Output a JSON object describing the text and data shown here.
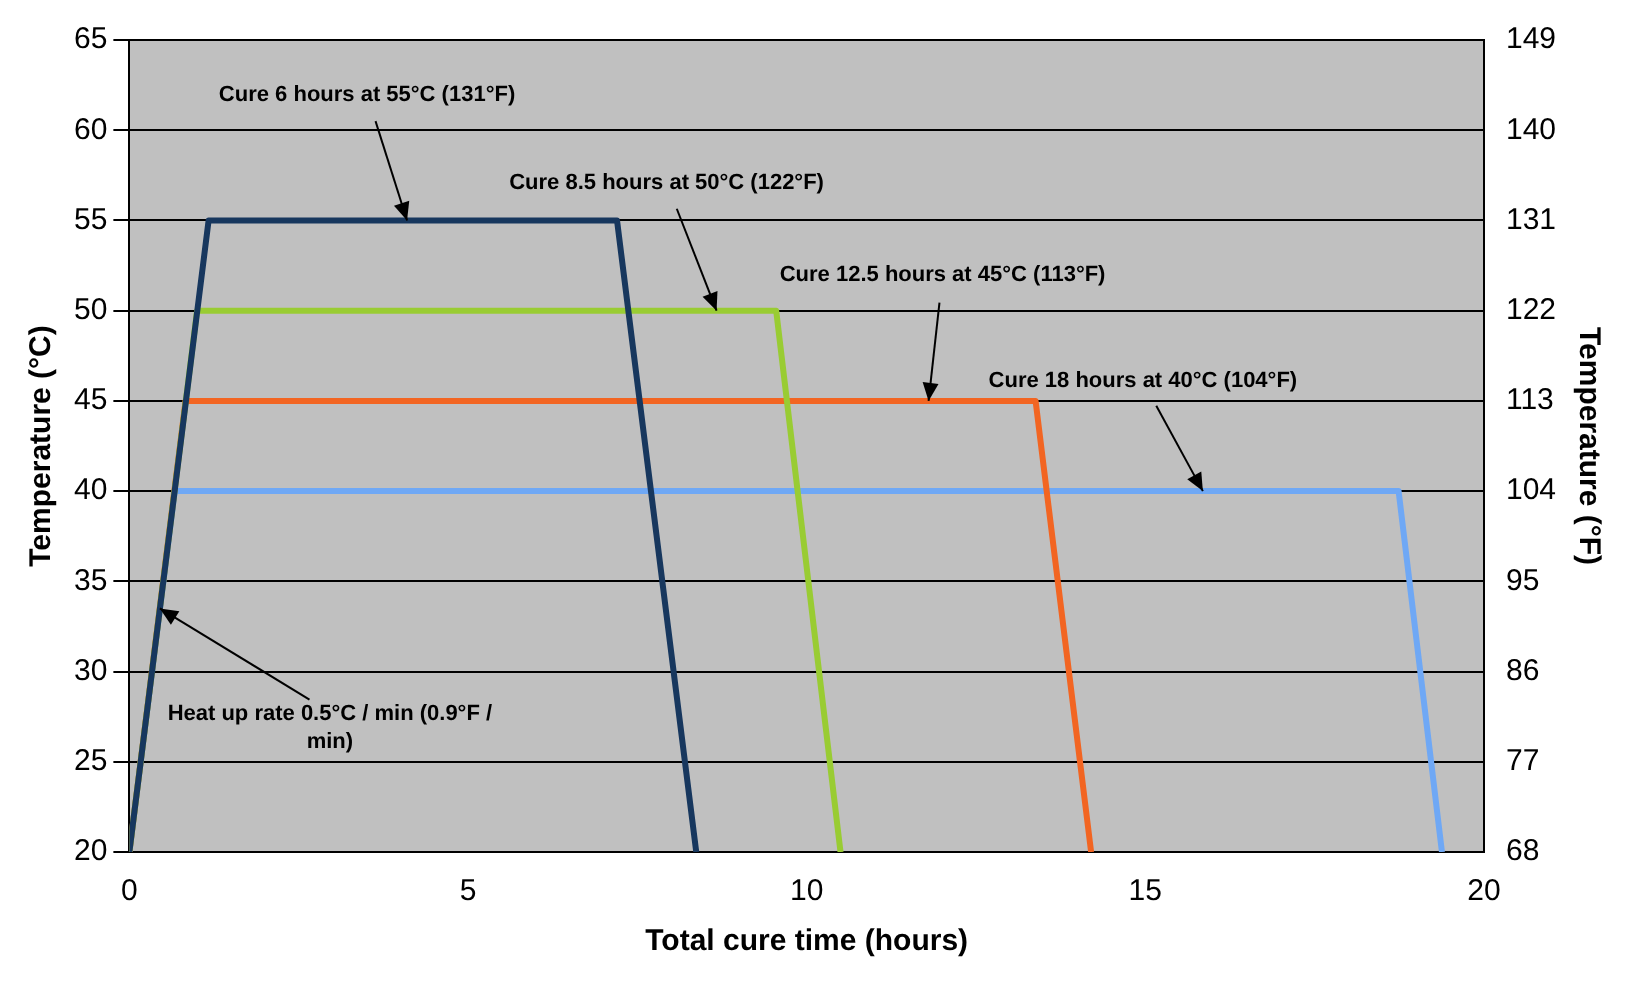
{
  "chart_data": {
    "type": "line",
    "xlabel": "Total cure time (hours)",
    "ylabel": "Temperature (°C)",
    "y2label": "Temperature (°F)",
    "xlim": [
      0,
      20
    ],
    "xticks": [
      0,
      5,
      10,
      15,
      20
    ],
    "ylim": [
      20,
      65
    ],
    "yticks": [
      20,
      25,
      30,
      35,
      40,
      45,
      50,
      55,
      60,
      65
    ],
    "y2lim": [
      68,
      149
    ],
    "y2ticks": [
      68,
      77,
      86,
      95,
      104,
      113,
      122,
      131,
      140,
      149
    ],
    "grid": "y",
    "legend": false,
    "marker": "none",
    "line_style": "solid",
    "series": [
      {
        "color": "#17375e",
        "x": [
          0,
          1.17,
          7.2,
          8.37
        ],
        "values": [
          20,
          55,
          55,
          20
        ]
      },
      {
        "color": "#99cc33",
        "x": [
          0,
          1.0,
          9.55,
          10.5
        ],
        "values": [
          20,
          50,
          50,
          20
        ]
      },
      {
        "color": "#f26522",
        "x": [
          0,
          0.83,
          13.38,
          14.2
        ],
        "values": [
          20,
          45,
          45,
          20
        ]
      },
      {
        "color": "#6fa8f5",
        "x": [
          0,
          0.67,
          18.74,
          19.38
        ],
        "values": [
          20,
          40,
          40,
          20
        ]
      }
    ],
    "annotations": [
      {
        "text": "Cure 6 hours at 55°C (131°F)",
        "x": 4.1,
        "y": 55
      },
      {
        "text": "Cure 8.5 hours at 50°C (122°F)",
        "x": 8.67,
        "y": 50
      },
      {
        "text": "Cure 12.5 hours at 45°C (113°F)",
        "x": 11.8,
        "y": 45
      },
      {
        "text": "Cure 18 hours at 40°C (104°F)",
        "x": 15.85,
        "y": 40
      },
      {
        "text": "Heat up rate 0.5°C / min (0.9°F / min)",
        "x": 0.45,
        "y": 33.5
      }
    ]
  }
}
